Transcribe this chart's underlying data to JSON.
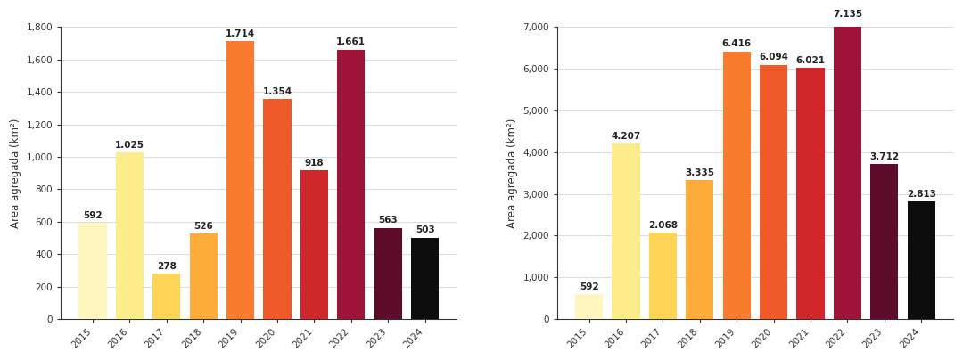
{
  "left": {
    "years": [
      "2015",
      "2016",
      "2017",
      "2018",
      "2019",
      "2020",
      "2021",
      "2022",
      "2023",
      "2024"
    ],
    "values": [
      592,
      1025,
      278,
      526,
      1714,
      1354,
      918,
      1661,
      563,
      503
    ],
    "colors": [
      "#FEF6BE",
      "#FDED8A",
      "#FDD455",
      "#FDAC3A",
      "#F97B2E",
      "#F05A2A",
      "#D0282A",
      "#9E1438",
      "#5C0B2B",
      "#0D0D0D"
    ],
    "ylabel": "Area agregada (km²)",
    "ylim": [
      0,
      1800
    ],
    "yticks": [
      0,
      200,
      400,
      600,
      800,
      1000,
      1200,
      1400,
      1600,
      1800
    ],
    "labels": [
      "592",
      "1.025",
      "278",
      "526",
      "1.714",
      "1.354",
      "918",
      "1.661",
      "563",
      "503"
    ]
  },
  "right": {
    "years": [
      "2015",
      "2016",
      "2017",
      "2018",
      "2019",
      "2020",
      "2021",
      "2022",
      "2023",
      "2024"
    ],
    "values": [
      592,
      4207,
      2068,
      3335,
      6416,
      6094,
      6021,
      7135,
      3712,
      2813
    ],
    "colors": [
      "#FEF6BE",
      "#FDED8A",
      "#FDD455",
      "#FDAC3A",
      "#F97B2E",
      "#F05A2A",
      "#D0282A",
      "#9E1438",
      "#5C0B2B",
      "#0D0D0D"
    ],
    "ylabel": "Area agregada (km²)",
    "ylim": [
      0,
      7000
    ],
    "yticks": [
      0,
      1000,
      2000,
      3000,
      4000,
      5000,
      6000,
      7000
    ],
    "labels": [
      "592",
      "4.207",
      "2.068",
      "3.335",
      "6.416",
      "6.094",
      "6.021",
      "7.135",
      "3.712",
      "2.813"
    ]
  },
  "background_color": "#ffffff",
  "grid_color": "#dddddd",
  "label_fontsize": 7.5,
  "axis_fontsize": 7.5,
  "ylabel_fontsize": 8.5
}
